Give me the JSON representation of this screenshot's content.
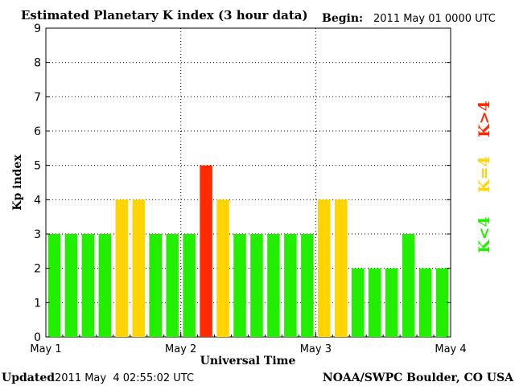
{
  "chart_data": {
    "type": "bar",
    "title": "Estimated Planetary K index (3 hour data)",
    "begin_label": "Begin:",
    "begin_value": "2011 May 01 0000 UTC",
    "xlabel": "Universal Time",
    "ylabel": "Kp index",
    "ylim": [
      0,
      9
    ],
    "yticks": [
      "0",
      "1",
      "2",
      "3",
      "4",
      "5",
      "6",
      "7",
      "8",
      "9"
    ],
    "xticks": [
      "May 1",
      "May 2",
      "May 3",
      "May 4"
    ],
    "grid": true,
    "values": [
      3,
      3,
      3,
      3,
      4,
      4,
      3,
      3,
      3,
      5,
      4,
      3,
      3,
      3,
      3,
      3,
      4,
      4,
      2,
      2,
      2,
      3,
      2,
      2
    ],
    "legend": [
      {
        "label": "K>4",
        "color": "#ff2a00"
      },
      {
        "label": "K=4",
        "color": "#ffd400"
      },
      {
        "label": "K<4",
        "color": "#22ee00"
      }
    ],
    "colors": {
      "low": "#22ee00",
      "equal": "#ffd400",
      "high": "#ff2a00"
    }
  },
  "footer": {
    "updated_label": "Updated",
    "updated_value": "2011 May  4 02:55:02 UTC",
    "source": "NOAA/SWPC Boulder, CO USA"
  }
}
